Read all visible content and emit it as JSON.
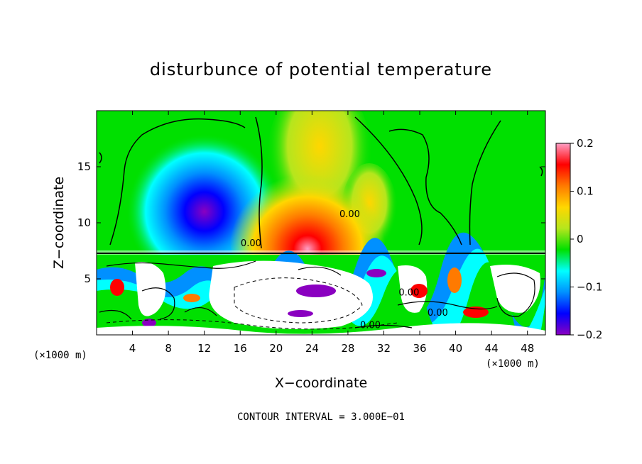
{
  "chart_data": {
    "type": "heatmap",
    "title": "disturbunce of potential temperature",
    "xlabel": "X−coordinate",
    "ylabel": "Z−coordinate",
    "x_unit_left": "(×1000 m)",
    "x_unit_right": "(×1000 m)",
    "xlim": [
      0,
      50
    ],
    "ylim": [
      0,
      20
    ],
    "x_ticks": [
      4,
      8,
      12,
      16,
      20,
      24,
      28,
      32,
      36,
      40,
      44,
      48
    ],
    "x_tick_labels": [
      "4",
      "8",
      "12",
      "16",
      "20",
      "24",
      "28",
      "32",
      "36",
      "40",
      "44",
      "48"
    ],
    "y_ticks": [
      5,
      10,
      15
    ],
    "y_tick_labels": [
      "5",
      "10",
      "15"
    ],
    "colorbar": {
      "min": -0.2,
      "max": 0.2,
      "ticks": [
        0.2,
        0.1,
        0,
        -0.1,
        -0.2
      ],
      "tick_labels": [
        "0.2",
        "0.1",
        "0",
        "−0.1",
        "−0.2"
      ],
      "colors": [
        "#ff9ec4",
        "#ff0000",
        "#ff7a00",
        "#ffd700",
        "#b5e61d",
        "#00e000",
        "#00ffff",
        "#0090ff",
        "#0000ff",
        "#8a00c0"
      ]
    },
    "contour_labels": [
      {
        "text": "0.00",
        "x": 28.2,
        "y": 10.5
      },
      {
        "text": "0.00",
        "x": 17.2,
        "y": 7.9
      },
      {
        "text": "0.00",
        "x": 34.8,
        "y": 3.5
      },
      {
        "text": "0.00",
        "x": 38.0,
        "y": 1.7
      },
      {
        "text": "0.00",
        "x": 30.5,
        "y": 0.6
      }
    ],
    "features": [
      {
        "name": "cold-anomaly",
        "x": 12,
        "z": 11,
        "value": -0.18
      },
      {
        "name": "warm-anomaly",
        "x": 23.5,
        "z": 9,
        "value": 0.16
      }
    ],
    "contour_interval_text": "CONTOUR INTERVAL = 3.000E−01"
  }
}
